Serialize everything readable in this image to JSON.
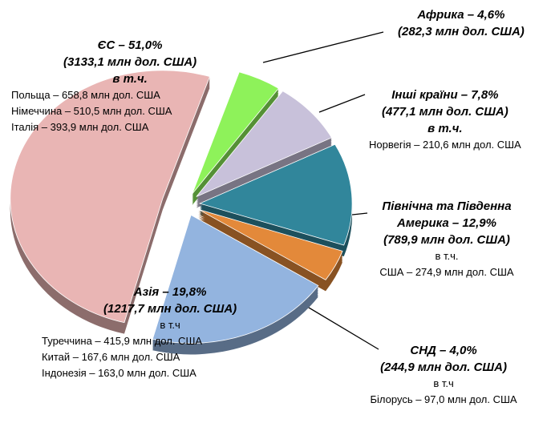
{
  "chart_data": {
    "type": "pie",
    "values": [
      4.6,
      7.8,
      12.9,
      4.0,
      19.8,
      51.0
    ],
    "value_labels": [
      "Африка – 4,6%",
      "Інші країни  – 7,8%",
      "Північна та Південна Америка – 12,9%",
      "СНД – 4,0%",
      "Азія – 19,8%",
      "ЄС – 51,0%"
    ],
    "colors": [
      "#8ef25a",
      "#c8c1da",
      "#31869b",
      "#e3893a",
      "#93b4df",
      "#e9b5b4"
    ],
    "labels": [
      [
        "(282,3 млн дол. США)"
      ],
      [
        "(477,1 млн дол. США)",
        "в т.ч.",
        "Норвегія – 210,6 млн дол. США"
      ],
      [
        "(789,9 млн дол. США)",
        "в т.ч.",
        "США – 274,9 млн дол. США"
      ],
      [
        "(244,9 млн дол. США)",
        "в т.ч",
        "Білорусь – 97,0 млн дол. США"
      ],
      [
        "(1217,7 млн дол. США)",
        "в т.ч",
        "Туреччина – 415,9  млн дол. США",
        "Китай – 167,6 млн дол. США",
        "Індонезія – 163,0 млн дол. США"
      ],
      [
        "(3133,1 млн  дол. США)",
        "в т.ч.",
        "Польща – 658,8 млн дол. США",
        "Німеччина – 510,5 млн дол. США",
        "Італія – 393,9 млн дол. США"
      ]
    ]
  }
}
